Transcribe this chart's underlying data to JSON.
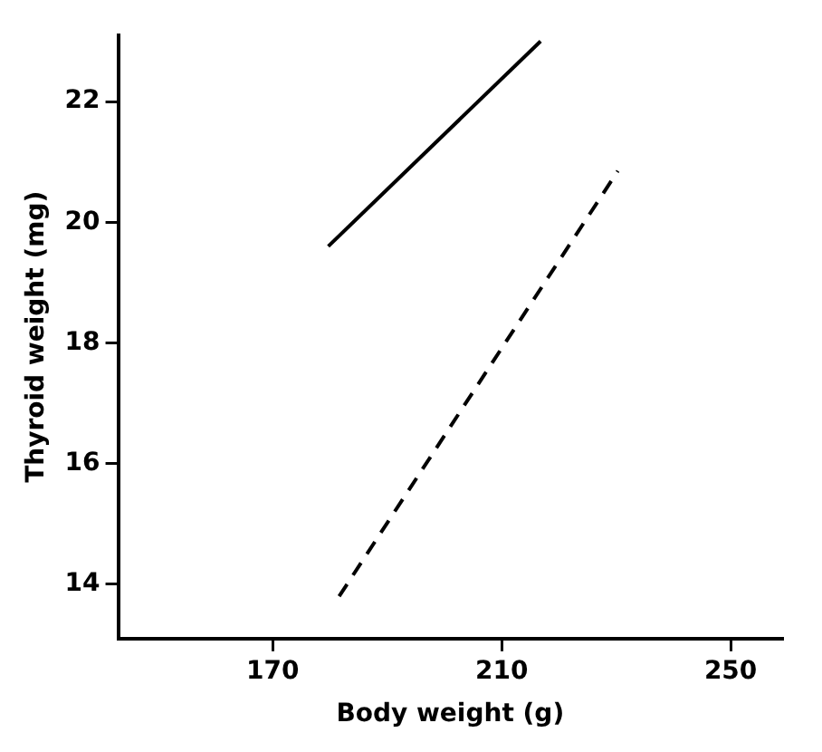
{
  "chart_data": {
    "type": "line",
    "xlabel": "Body weight (g)",
    "ylabel": "Thyroid weight (mg)",
    "xlim": [
      143,
      259
    ],
    "ylim": [
      13.1,
      23.1
    ],
    "xticks": [
      170,
      210,
      250
    ],
    "yticks": [
      14,
      16,
      18,
      20,
      22
    ],
    "grid": false,
    "legend": false,
    "marker": "none",
    "series": [
      {
        "color": "#000000",
        "line_style": "solid",
        "x": [
          179.7,
          216.8
        ],
        "values": [
          19.6,
          23.0
        ]
      },
      {
        "color": "#000000",
        "line_style": "dashed",
        "x": [
          181.6,
          230.3
        ],
        "values": [
          13.8,
          20.85
        ]
      }
    ]
  }
}
